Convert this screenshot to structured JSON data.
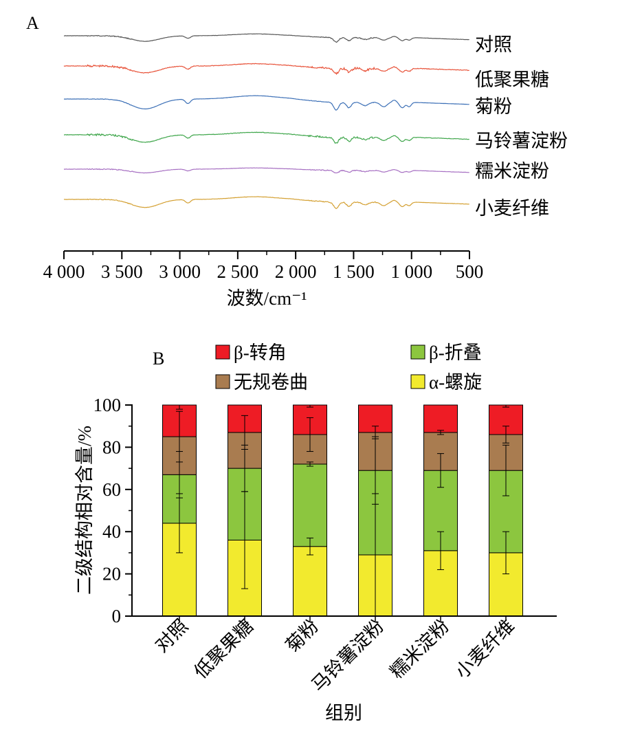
{
  "chart_data": [
    {
      "type": "line",
      "panel_label": "A",
      "xlabel": "波数/cm⁻¹",
      "x_ticks": [
        "4 000",
        "3 500",
        "3 000",
        "2 500",
        "2 000",
        "1 500",
        "1 000",
        "500"
      ],
      "x_tick_values": [
        4000,
        3500,
        3000,
        2500,
        2000,
        1500,
        1000,
        500
      ],
      "xlim": [
        4000,
        500
      ],
      "x_reversed": true,
      "grid": false,
      "legend": "labels at right end of each curve",
      "series": [
        {
          "name": "对照",
          "color": "#555555"
        },
        {
          "name": "低聚果糖",
          "color": "#e8533a"
        },
        {
          "name": "菊粉",
          "color": "#3b6fb6"
        },
        {
          "name": "马铃薯淀粉",
          "color": "#3fa64b"
        },
        {
          "name": "糯米淀粉",
          "color": "#a66fc2"
        },
        {
          "name": "小麦纤维",
          "color": "#d4a032"
        }
      ]
    },
    {
      "type": "bar",
      "stacked": true,
      "panel_label": "B",
      "xlabel": "组别",
      "ylabel": "二级结构相对含量/%",
      "ylim": [
        0,
        100
      ],
      "y_ticks": [
        0,
        20,
        40,
        60,
        80,
        100
      ],
      "grid": false,
      "legend": "top, two columns",
      "categories": [
        "对照",
        "低聚果糖",
        "菊粉",
        "马铃薯淀粉",
        "糯米淀粉",
        "小麦纤维"
      ],
      "series": [
        {
          "name": "α-螺旋",
          "color": "#f2ea2e",
          "values": [
            44,
            36,
            33,
            29,
            31,
            30
          ],
          "error": [
            14,
            23,
            4,
            29,
            9,
            10
          ]
        },
        {
          "name": "β-折叠",
          "color": "#8cc63f",
          "values": [
            23,
            34,
            39,
            40,
            38,
            39
          ],
          "error": [
            11,
            11,
            1,
            16,
            8,
            12
          ]
        },
        {
          "name": "无规卷曲",
          "color": "#a97c50",
          "values": [
            18,
            17,
            14,
            18,
            18,
            17
          ],
          "error": [
            12,
            8,
            8,
            3,
            1,
            4
          ]
        },
        {
          "name": "β-转角",
          "color": "#ee1c25",
          "values": [
            15,
            13,
            14,
            13,
            13,
            14
          ],
          "error": [
            2,
            0,
            1,
            0,
            0,
            1
          ]
        }
      ]
    }
  ]
}
